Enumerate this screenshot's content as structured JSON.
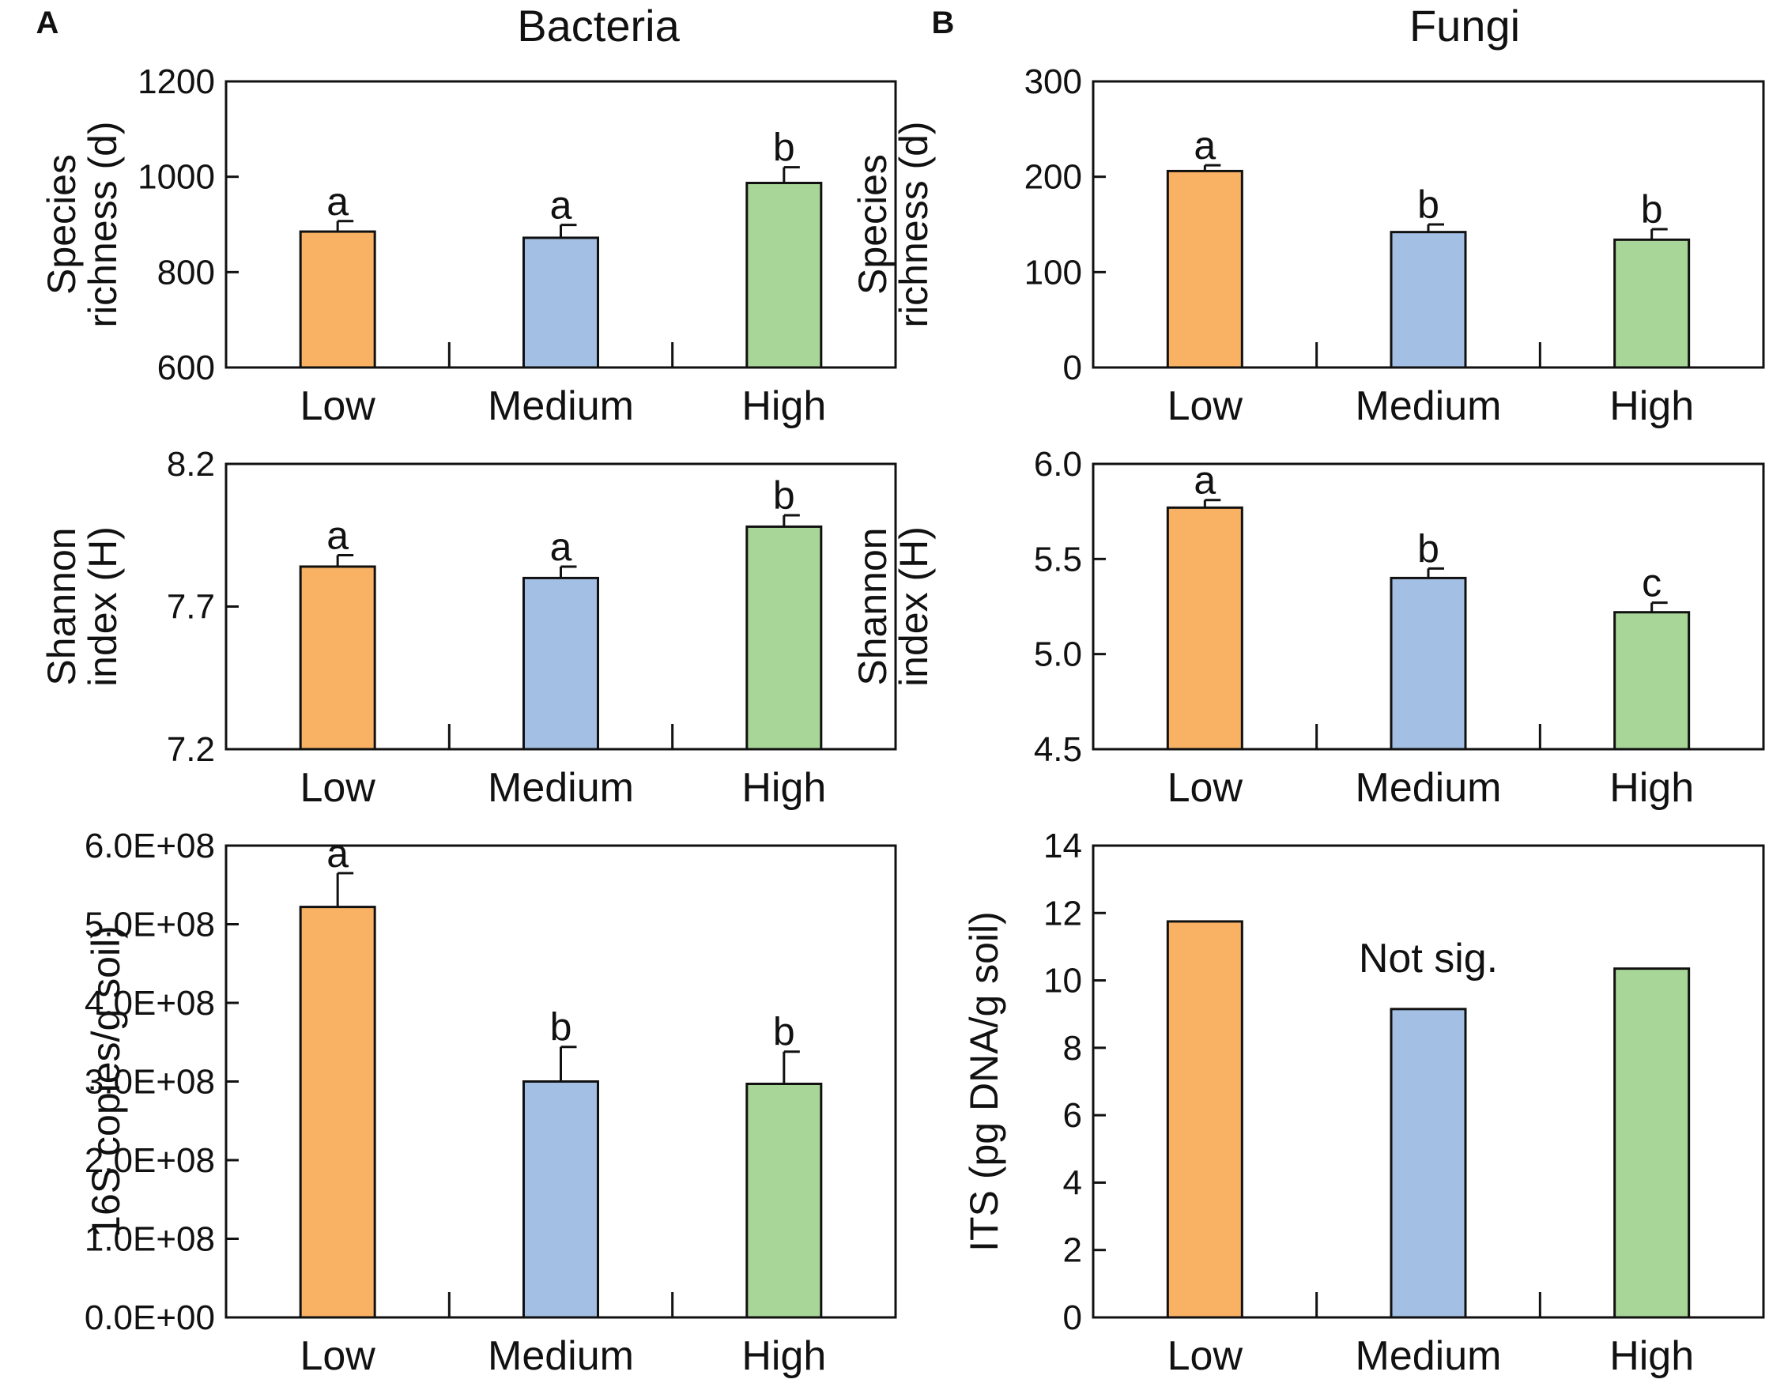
{
  "figure": {
    "panels": [
      {
        "letter": "A",
        "title": "Bacteria"
      },
      {
        "letter": "B",
        "title": "Fungi"
      }
    ]
  },
  "chart_data": [
    {
      "id": "bac-richness",
      "type": "bar",
      "title": "Bacteria",
      "categories": [
        "Low",
        "Medium",
        "High"
      ],
      "values": [
        885,
        872,
        987
      ],
      "errors": [
        22,
        27,
        33
      ],
      "sig_letters": [
        "a",
        "a",
        "b"
      ],
      "ylabel_lines": [
        "Species",
        "richness (d)"
      ],
      "ylim": [
        600,
        1200
      ],
      "yticks": [
        600,
        800,
        1000,
        1200
      ],
      "ytick_labels": [
        "600",
        "800",
        "1000",
        "1200"
      ],
      "annotation": "",
      "colors": [
        "#F9B264",
        "#A3BFE3",
        "#A8D698"
      ]
    },
    {
      "id": "fun-richness",
      "type": "bar",
      "title": "Fungi",
      "categories": [
        "Low",
        "Medium",
        "High"
      ],
      "values": [
        206,
        142,
        134
      ],
      "errors": [
        6,
        8,
        11
      ],
      "sig_letters": [
        "a",
        "b",
        "b"
      ],
      "ylabel_lines": [
        "Species",
        "richness (d)"
      ],
      "ylim": [
        0,
        300
      ],
      "yticks": [
        0,
        100,
        200,
        300
      ],
      "ytick_labels": [
        "0",
        "100",
        "200",
        "300"
      ],
      "annotation": "",
      "colors": [
        "#F9B264",
        "#A3BFE3",
        "#A8D698"
      ]
    },
    {
      "id": "bac-shannon",
      "type": "bar",
      "title": "",
      "categories": [
        "Low",
        "Medium",
        "High"
      ],
      "values": [
        7.84,
        7.8,
        7.98
      ],
      "errors": [
        0.04,
        0.04,
        0.04
      ],
      "sig_letters": [
        "a",
        "a",
        "b"
      ],
      "ylabel_lines": [
        "Shannon",
        "index (H)"
      ],
      "ylim": [
        7.2,
        8.2
      ],
      "yticks": [
        7.2,
        7.7,
        8.2
      ],
      "ytick_labels": [
        "7.2",
        "7.7",
        "8.2"
      ],
      "annotation": "",
      "colors": [
        "#F9B264",
        "#A3BFE3",
        "#A8D698"
      ]
    },
    {
      "id": "fun-shannon",
      "type": "bar",
      "title": "",
      "categories": [
        "Low",
        "Medium",
        "High"
      ],
      "values": [
        5.77,
        5.4,
        5.22
      ],
      "errors": [
        0.04,
        0.05,
        0.05
      ],
      "sig_letters": [
        "a",
        "b",
        "c"
      ],
      "ylabel_lines": [
        "Shannon",
        "index (H)"
      ],
      "ylim": [
        4.5,
        6.0
      ],
      "yticks": [
        4.5,
        5.0,
        5.5,
        6.0
      ],
      "ytick_labels": [
        "4.5",
        "5.0",
        "5.5",
        "6.0"
      ],
      "annotation": "",
      "colors": [
        "#F9B264",
        "#A3BFE3",
        "#A8D698"
      ]
    },
    {
      "id": "bac-16s",
      "type": "bar",
      "title": "",
      "categories": [
        "Low",
        "Medium",
        "High"
      ],
      "values": [
        522000000,
        300000000,
        297000000
      ],
      "errors": [
        43000000,
        44000000,
        41000000
      ],
      "sig_letters": [
        "a",
        "b",
        "b"
      ],
      "ylabel_lines": [
        "16S copies/g soil)"
      ],
      "ylim": [
        0,
        600000000
      ],
      "yticks": [
        0,
        100000000,
        200000000,
        300000000,
        400000000,
        500000000,
        600000000
      ],
      "ytick_labels": [
        "0.0E+00",
        "1.0E+08",
        "2.0E+08",
        "3.0E+08",
        "4.0E+08",
        "5.0E+08",
        "6.0E+08"
      ],
      "annotation": "",
      "colors": [
        "#F9B264",
        "#A3BFE3",
        "#A8D698"
      ]
    },
    {
      "id": "fun-its",
      "type": "bar",
      "title": "",
      "categories": [
        "Low",
        "Medium",
        "High"
      ],
      "values": [
        11.75,
        9.15,
        10.35
      ],
      "errors": [
        0,
        0,
        0
      ],
      "sig_letters": [
        "",
        "",
        ""
      ],
      "ylabel_lines": [
        "ITS (pg DNA/g soil)"
      ],
      "ylim": [
        0,
        14
      ],
      "yticks": [
        0,
        2,
        4,
        6,
        8,
        10,
        12,
        14
      ],
      "ytick_labels": [
        "0",
        "2",
        "4",
        "6",
        "8",
        "10",
        "12",
        "14"
      ],
      "annotation": "Not sig.",
      "colors": [
        "#F9B264",
        "#A3BFE3",
        "#A8D698"
      ]
    }
  ]
}
